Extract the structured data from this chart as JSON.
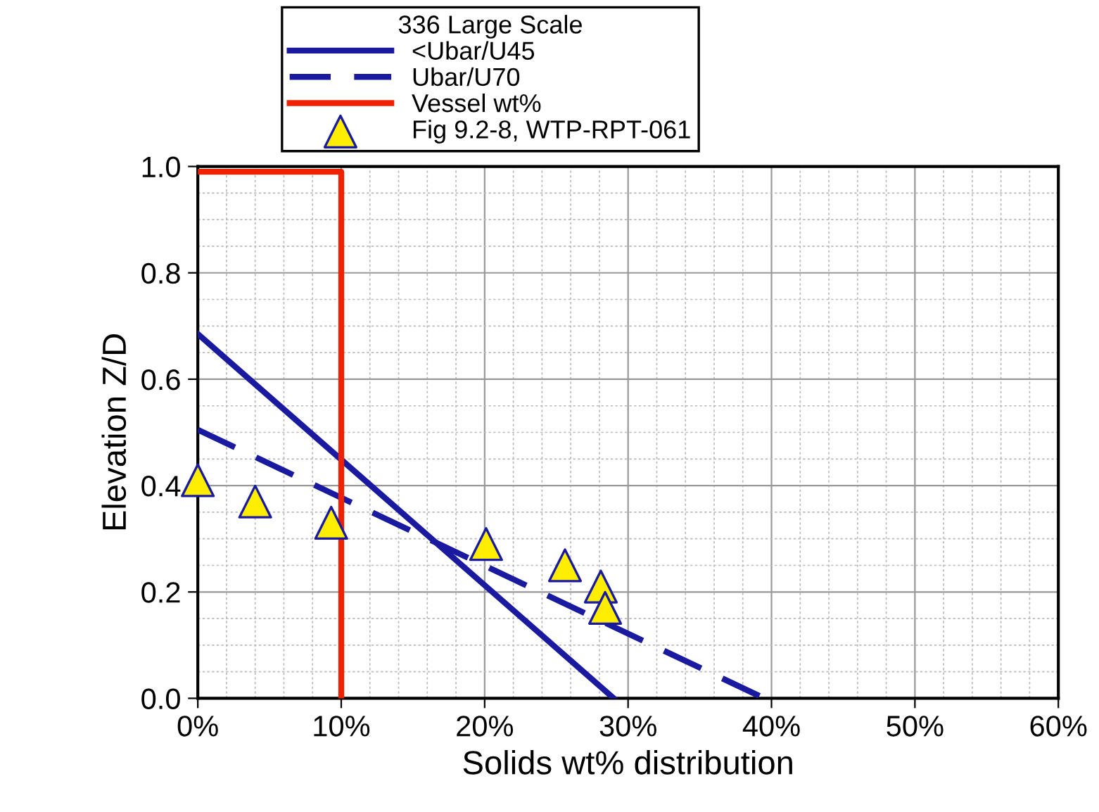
{
  "chart_data": {
    "type": "line",
    "xlabel": "Solids wt% distribution",
    "ylabel": "Elevation Z/D",
    "legend_title": "336 Large Scale",
    "xlim": [
      0,
      60
    ],
    "xticks": [
      {
        "value": 0,
        "label": "0%"
      },
      {
        "value": 10,
        "label": "10%"
      },
      {
        "value": 20,
        "label": "20%"
      },
      {
        "value": 30,
        "label": "30%"
      },
      {
        "value": 40,
        "label": "40%"
      },
      {
        "value": 50,
        "label": "50%"
      },
      {
        "value": 60,
        "label": "60%"
      }
    ],
    "ylim": [
      0,
      1.0
    ],
    "yticks": [
      {
        "value": 0,
        "label": "0.0"
      },
      {
        "value": 0.2,
        "label": "0.2"
      },
      {
        "value": 0.4,
        "label": "0.4"
      },
      {
        "value": 0.6,
        "label": "0.6"
      },
      {
        "value": 0.8,
        "label": "0.8"
      },
      {
        "value": 1.0,
        "label": "1.0"
      }
    ],
    "grid": true,
    "legend": "top",
    "series": [
      {
        "name": "<Ubar/U45",
        "line_style": "solid",
        "color": "#1a1aa0",
        "x": [
          0,
          29.0
        ],
        "values": [
          0.685,
          0
        ]
      },
      {
        "name": "Ubar/U70",
        "line_style": "dashed",
        "color": "#1a1aa0",
        "x": [
          0,
          39.5
        ],
        "values": [
          0.505,
          0
        ]
      },
      {
        "name": "Vessel wt%",
        "line_style": "solid",
        "color": "#ee2200",
        "x": [
          0,
          10,
          10
        ],
        "values": [
          0.99,
          0.99,
          0
        ]
      },
      {
        "name": "Fig 9.2-8, WTP-RPT-061",
        "type": "scatter",
        "marker": "triangle",
        "color": "#ffee00",
        "x": [
          0,
          4.0,
          9.3,
          20.1,
          25.6,
          28.1,
          28.4
        ],
        "values": [
          0.41,
          0.37,
          0.33,
          0.29,
          0.25,
          0.21,
          0.17
        ]
      }
    ]
  }
}
